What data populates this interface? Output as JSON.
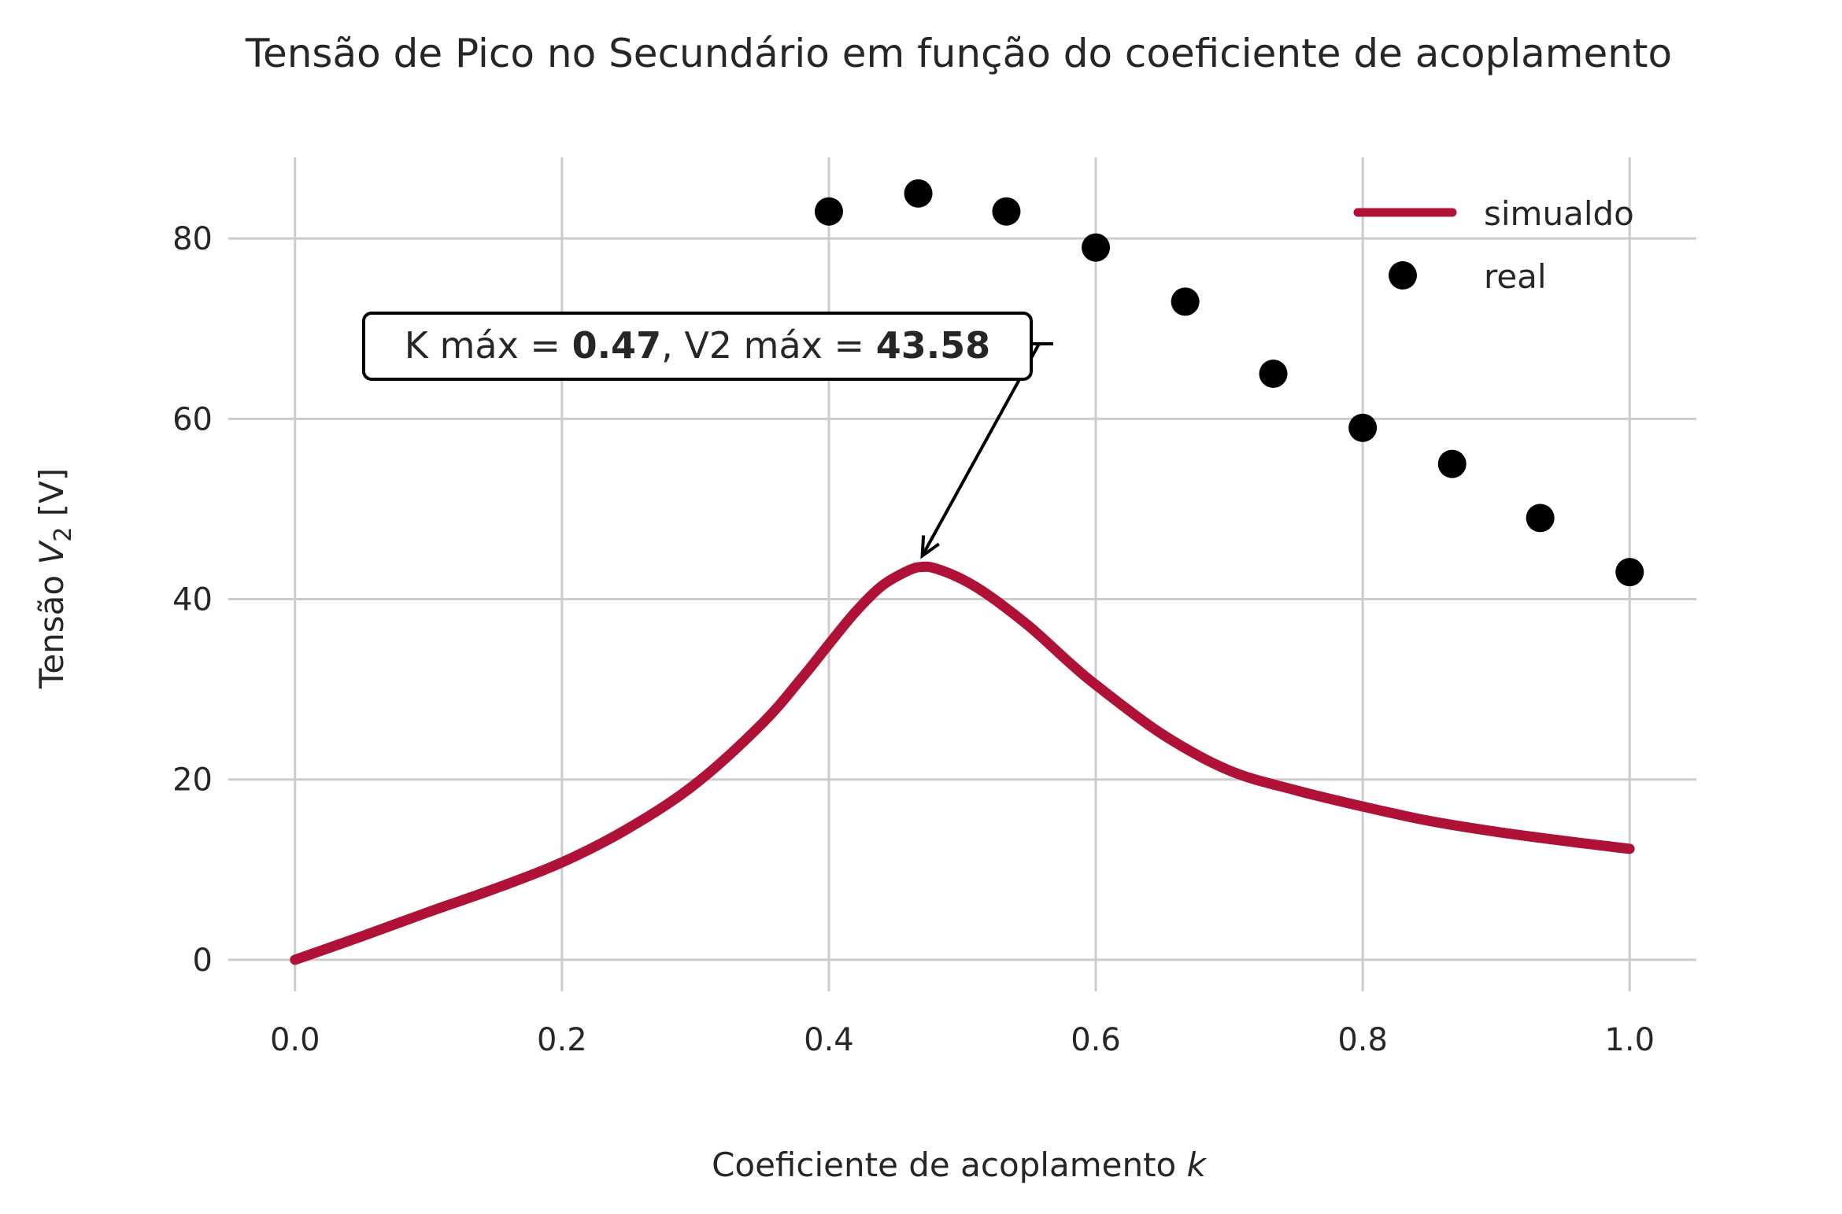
{
  "chart_data": {
    "type": "line",
    "title": "Tensão de Pico no Secundário em função do coeficiente de acoplamento",
    "xlabel_prefix": "Coeficiente de acoplamento ",
    "xlabel_var": "k",
    "ylabel_prefix": "Tensão ",
    "ylabel_var": "V",
    "ylabel_sub": "2",
    "ylabel_suffix": " [V]",
    "xlim": [
      -0.05,
      1.05
    ],
    "ylim": [
      -3.5,
      89
    ],
    "xticks": [
      0.0,
      0.2,
      0.4,
      0.6,
      0.8,
      1.0
    ],
    "xtick_labels": [
      "0.0",
      "0.2",
      "0.4",
      "0.6",
      "0.8",
      "1.0"
    ],
    "yticks": [
      0,
      20,
      40,
      60,
      80
    ],
    "ytick_labels": [
      "0",
      "20",
      "40",
      "60",
      "80"
    ],
    "grid": true,
    "legend_position": "top-right",
    "series": [
      {
        "name": "simualdo",
        "kind": "line",
        "color": "#b01237",
        "x": [
          0.0,
          0.05,
          0.1,
          0.15,
          0.2,
          0.25,
          0.3,
          0.35,
          0.38,
          0.4,
          0.42,
          0.44,
          0.46,
          0.47,
          0.48,
          0.5,
          0.52,
          0.55,
          0.58,
          0.6,
          0.65,
          0.7,
          0.75,
          0.8,
          0.85,
          0.9,
          0.95,
          1.0
        ],
        "y": [
          0.0,
          2.6,
          5.3,
          7.9,
          10.8,
          14.6,
          19.5,
          26.2,
          31.3,
          35.0,
          38.6,
          41.5,
          43.2,
          43.58,
          43.4,
          42.2,
          40.4,
          37.0,
          33.0,
          30.5,
          25.0,
          21.0,
          18.8,
          17.0,
          15.4,
          14.2,
          13.2,
          12.3
        ]
      },
      {
        "name": "real",
        "kind": "scatter",
        "color": "#000000",
        "x": [
          0.4,
          0.467,
          0.533,
          0.6,
          0.667,
          0.733,
          0.8,
          0.867,
          0.933,
          1.0
        ],
        "y": [
          83,
          85,
          83,
          79,
          73,
          65,
          59,
          55,
          49,
          43
        ]
      }
    ],
    "annotation": {
      "text_prefix": "K máx = ",
      "k_max": "0.47",
      "text_middle": ", V2 máx = ",
      "v2_max": "43.58",
      "point": [
        0.47,
        43.58
      ],
      "text_anchor_point": [
        0.3,
        68
      ]
    }
  }
}
